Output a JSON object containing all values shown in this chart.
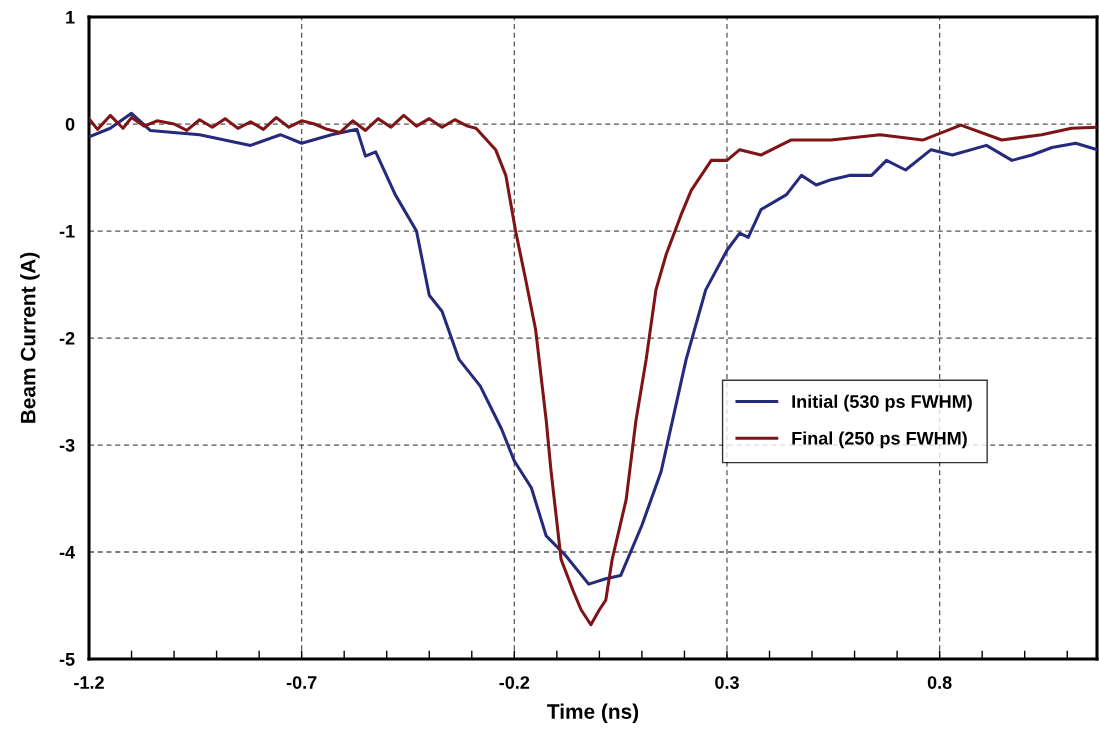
{
  "chart_data": {
    "type": "line",
    "xlabel": "Time (ns)",
    "ylabel": "Beam Current (A)",
    "xlim": [
      -1.2,
      1.17
    ],
    "ylim": [
      -5,
      1
    ],
    "xticks": [
      -1.2,
      {
        "value": -1.1,
        "label": null
      },
      {
        "value": -1.0,
        "label": null
      },
      {
        "value": -0.9,
        "label": null
      },
      {
        "value": -0.8,
        "label": null
      },
      -0.7,
      {
        "value": -0.6,
        "label": null
      },
      {
        "value": -0.5,
        "label": null
      },
      {
        "value": -0.4,
        "label": null
      },
      {
        "value": -0.3,
        "label": null
      },
      -0.2,
      {
        "value": -0.1,
        "label": null
      },
      {
        "value": 0.0,
        "label": null
      },
      {
        "value": 0.1,
        "label": null
      },
      {
        "value": 0.2,
        "label": null
      },
      0.3,
      {
        "value": 0.4,
        "label": null
      },
      {
        "value": 0.5,
        "label": null
      },
      {
        "value": 0.6,
        "label": null
      },
      {
        "value": 0.7,
        "label": null
      },
      0.8,
      {
        "value": 0.9,
        "label": null
      },
      {
        "value": 1.0,
        "label": null
      },
      {
        "value": 1.1,
        "label": null
      }
    ],
    "yticks": [
      -5,
      -4,
      -3,
      -2,
      -1,
      0,
      1
    ],
    "grid": true,
    "legend": "right",
    "line_style": "solid",
    "marker": "none",
    "series": [
      {
        "name": "Initial (530 ps FWHM)",
        "color": "#262a7c",
        "x": [
          -1.2,
          -1.15,
          -1.1,
          -1.056,
          -0.94,
          -0.82,
          -0.75,
          -0.7,
          -0.63,
          -0.57,
          -0.55,
          -0.526,
          -0.48,
          -0.43,
          -0.4,
          -0.37,
          -0.33,
          -0.28,
          -0.23,
          -0.2,
          -0.16,
          -0.125,
          -0.08,
          -0.025,
          0.015,
          0.05,
          0.1,
          0.145,
          0.204,
          0.25,
          0.3,
          0.33,
          0.35,
          0.38,
          0.44,
          0.475,
          0.51,
          0.545,
          0.59,
          0.64,
          0.675,
          0.72,
          0.78,
          0.83,
          0.91,
          0.97,
          1.017,
          1.064,
          1.12,
          1.17
        ],
        "values": [
          -0.12,
          -0.04,
          0.1,
          -0.06,
          -0.1,
          -0.2,
          -0.1,
          -0.18,
          -0.1,
          -0.05,
          -0.3,
          -0.26,
          -0.66,
          -1.0,
          -1.6,
          -1.75,
          -2.2,
          -2.45,
          -2.85,
          -3.15,
          -3.4,
          -3.85,
          -4.03,
          -4.3,
          -4.25,
          -4.22,
          -3.75,
          -3.25,
          -2.2,
          -1.55,
          -1.18,
          -1.02,
          -1.06,
          -0.8,
          -0.66,
          -0.48,
          -0.57,
          -0.52,
          -0.48,
          -0.48,
          -0.34,
          -0.43,
          -0.24,
          -0.29,
          -0.2,
          -0.34,
          -0.29,
          -0.22,
          -0.18,
          -0.24
        ]
      },
      {
        "name": "Final (250 ps FWHM)",
        "color": "#7f1416",
        "x": [
          -1.2,
          -1.18,
          -1.15,
          -1.12,
          -1.1,
          -1.07,
          -1.04,
          -1.0,
          -0.97,
          -0.94,
          -0.91,
          -0.88,
          -0.85,
          -0.82,
          -0.79,
          -0.76,
          -0.73,
          -0.7,
          -0.67,
          -0.64,
          -0.61,
          -0.58,
          -0.55,
          -0.52,
          -0.49,
          -0.46,
          -0.43,
          -0.4,
          -0.37,
          -0.34,
          -0.31,
          -0.29,
          -0.244,
          -0.22,
          -0.197,
          -0.173,
          -0.15,
          -0.125,
          -0.114,
          -0.09,
          -0.062,
          -0.043,
          -0.02,
          0.0,
          0.015,
          0.03,
          0.063,
          0.086,
          0.11,
          0.133,
          0.157,
          0.192,
          0.216,
          0.263,
          0.3,
          0.33,
          0.38,
          0.45,
          0.545,
          0.66,
          0.76,
          0.85,
          0.946,
          1.04,
          1.11,
          1.17
        ],
        "values": [
          0.05,
          -0.05,
          0.08,
          -0.04,
          0.06,
          -0.02,
          0.03,
          0.0,
          -0.06,
          0.04,
          -0.03,
          0.05,
          -0.04,
          0.02,
          -0.05,
          0.06,
          -0.03,
          0.03,
          0.0,
          -0.05,
          -0.08,
          0.03,
          -0.06,
          0.05,
          -0.03,
          0.08,
          -0.02,
          0.05,
          -0.03,
          0.04,
          -0.02,
          -0.04,
          -0.24,
          -0.48,
          -1.0,
          -1.46,
          -1.92,
          -2.77,
          -3.23,
          -4.07,
          -4.36,
          -4.54,
          -4.68,
          -4.54,
          -4.45,
          -4.07,
          -3.51,
          -2.77,
          -2.2,
          -1.55,
          -1.22,
          -0.85,
          -0.62,
          -0.34,
          -0.34,
          -0.24,
          -0.29,
          -0.15,
          -0.15,
          -0.1,
          -0.15,
          -0.01,
          -0.15,
          -0.1,
          -0.04,
          -0.03
        ]
      }
    ]
  }
}
